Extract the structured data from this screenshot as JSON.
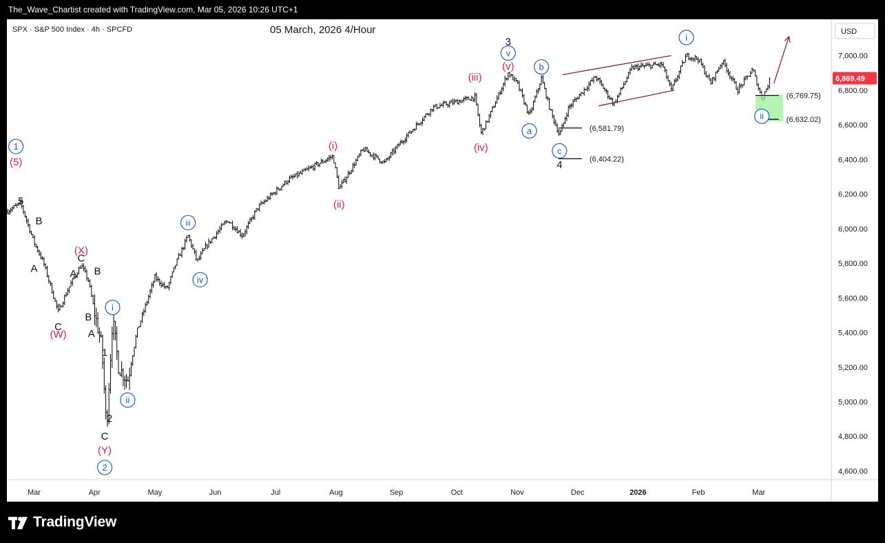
{
  "header": {
    "caption": "The_Wave_Chartist created with TradingView.com, Mar 05, 2026 10:26 UTC+1"
  },
  "footer": {
    "brand": "TradingView"
  },
  "colors": {
    "blue": "#1e5bd6",
    "red": "#e0203a",
    "black": "#111111",
    "magenta": "#8a1a55",
    "green_zone": "#9ef09a",
    "price_tag": "#f23645"
  },
  "chart_data": {
    "type": "candlestick",
    "symbol_line": "SPX · S&P 500 Index · 4h · SPCFD",
    "title": "05 March, 2026 4/Hour",
    "currency": "USD",
    "ylim": [
      4550,
      7210
    ],
    "y_ticks": [
      7000,
      6800,
      6600,
      6400,
      6200,
      6000,
      5800,
      5600,
      5400,
      5200,
      5000,
      4800,
      4600
    ],
    "y_tick_labels": [
      "7,000.00",
      "6,800.00",
      "6,600.00",
      "6,400.00",
      "6,200.00",
      "6,000.00",
      "5,800.00",
      "5,600.00",
      "5,400.00",
      "5,200.00",
      "5,000.00",
      "4,800.00",
      "4,600.00"
    ],
    "last_price": 6869.49,
    "last_price_label": "6,869.49",
    "x_labels": [
      {
        "t": 1,
        "label": "Mar"
      },
      {
        "t": 2,
        "label": "Apr"
      },
      {
        "t": 3,
        "label": "May"
      },
      {
        "t": 4,
        "label": "Jun"
      },
      {
        "t": 5,
        "label": "Jul"
      },
      {
        "t": 6,
        "label": "Aug"
      },
      {
        "t": 7,
        "label": "Sep"
      },
      {
        "t": 8,
        "label": "Oct"
      },
      {
        "t": 9,
        "label": "Nov"
      },
      {
        "t": 10,
        "label": "Dec"
      },
      {
        "t": 11,
        "label": "2026",
        "bold": true
      },
      {
        "t": 12,
        "label": "Feb"
      },
      {
        "t": 13,
        "label": "Mar"
      }
    ],
    "x_range": [
      0.55,
      14.2
    ],
    "path": [
      [
        0.55,
        6100
      ],
      [
        0.78,
        6147
      ],
      [
        1.0,
        5920
      ],
      [
        1.15,
        5810
      ],
      [
        1.4,
        5520
      ],
      [
        1.55,
        5640
      ],
      [
        1.65,
        5710
      ],
      [
        1.78,
        5790
      ],
      [
        1.9,
        5700
      ],
      [
        2.0,
        5520
      ],
      [
        2.12,
        5320
      ],
      [
        2.2,
        4840
      ],
      [
        2.3,
        5480
      ],
      [
        2.4,
        5200
      ],
      [
        2.55,
        5120
      ],
      [
        2.7,
        5400
      ],
      [
        3.0,
        5720
      ],
      [
        3.2,
        5650
      ],
      [
        3.35,
        5800
      ],
      [
        3.55,
        5960
      ],
      [
        3.7,
        5810
      ],
      [
        3.85,
        5900
      ],
      [
        4.2,
        6050
      ],
      [
        4.45,
        5960
      ],
      [
        4.7,
        6120
      ],
      [
        5.2,
        6280
      ],
      [
        5.95,
        6420
      ],
      [
        6.05,
        6230
      ],
      [
        6.45,
        6460
      ],
      [
        6.8,
        6380
      ],
      [
        7.05,
        6490
      ],
      [
        7.6,
        6700
      ],
      [
        8.3,
        6760
      ],
      [
        8.4,
        6550
      ],
      [
        8.5,
        6620
      ],
      [
        8.85,
        6900
      ],
      [
        9.0,
        6840
      ],
      [
        9.2,
        6650
      ],
      [
        9.4,
        6870
      ],
      [
        9.55,
        6680
      ],
      [
        9.7,
        6540
      ],
      [
        9.85,
        6700
      ],
      [
        10.3,
        6880
      ],
      [
        10.6,
        6720
      ],
      [
        10.9,
        6930
      ],
      [
        11.4,
        6950
      ],
      [
        11.55,
        6800
      ],
      [
        11.8,
        7000
      ],
      [
        12.0,
        6980
      ],
      [
        12.2,
        6840
      ],
      [
        12.4,
        6970
      ],
      [
        12.65,
        6800
      ],
      [
        12.9,
        6920
      ],
      [
        13.05,
        6750
      ],
      [
        13.2,
        6869
      ]
    ],
    "levels": [
      {
        "t": 9.82,
        "y": 6581.79,
        "label": "(6,581.79)"
      },
      {
        "t": 9.82,
        "y": 6404.22,
        "label": "(6,404.22)"
      },
      {
        "t": 13.08,
        "y": 6769.75,
        "label": "(6,769.75)"
      },
      {
        "t": 13.08,
        "y": 6632.02,
        "label": "(6,632.02)"
      }
    ],
    "channel": [
      {
        "t1": 9.75,
        "y1": 6890,
        "t2": 11.55,
        "y2": 7000
      },
      {
        "t1": 10.35,
        "y1": 6710,
        "t2": 11.6,
        "y2": 6800
      }
    ],
    "target_zone": {
      "t1": 12.95,
      "t2": 13.4,
      "y1": 6620,
      "y2": 6775
    },
    "projection": {
      "t1": 13.25,
      "y1": 6840,
      "t2": 13.5,
      "y2": 7110
    },
    "wave_labels": [
      {
        "t": 0.7,
        "y": 6475,
        "text": "1",
        "style": "circle",
        "color": "blue"
      },
      {
        "t": 0.7,
        "y": 6385,
        "text": "(5)",
        "color": "red"
      },
      {
        "t": 0.78,
        "y": 6160,
        "text": "5",
        "color": "black"
      },
      {
        "t": 1.08,
        "y": 6045,
        "text": "B",
        "color": "black"
      },
      {
        "t": 1.0,
        "y": 5770,
        "text": "A",
        "color": "black"
      },
      {
        "t": 1.4,
        "y": 5435,
        "text": "C",
        "color": "black"
      },
      {
        "t": 1.4,
        "y": 5390,
        "text": "(W)",
        "color": "red"
      },
      {
        "t": 1.65,
        "y": 5740,
        "text": "A",
        "color": "black"
      },
      {
        "t": 1.78,
        "y": 5875,
        "text": "(X)",
        "color": "red"
      },
      {
        "t": 1.78,
        "y": 5830,
        "text": "C",
        "color": "black"
      },
      {
        "t": 1.9,
        "y": 5490,
        "text": "B",
        "color": "black"
      },
      {
        "t": 2.05,
        "y": 5755,
        "text": "B",
        "color": "black"
      },
      {
        "t": 1.95,
        "y": 5395,
        "text": "A",
        "color": "black"
      },
      {
        "t": 2.3,
        "y": 5545,
        "text": "i",
        "style": "circle",
        "color": "blue"
      },
      {
        "t": 2.17,
        "y": 5285,
        "text": "1",
        "color": "black"
      },
      {
        "t": 2.25,
        "y": 4905,
        "text": "2",
        "color": "black"
      },
      {
        "t": 2.17,
        "y": 4800,
        "text": "C",
        "color": "black"
      },
      {
        "t": 2.17,
        "y": 4720,
        "text": "(Y)",
        "color": "red"
      },
      {
        "t": 2.17,
        "y": 4620,
        "text": "2",
        "style": "circle",
        "color": "blue"
      },
      {
        "t": 2.55,
        "y": 5010,
        "text": "ii",
        "style": "circle",
        "color": "blue"
      },
      {
        "t": 3.55,
        "y": 6035,
        "text": "iii",
        "style": "circle",
        "color": "blue"
      },
      {
        "t": 3.75,
        "y": 5705,
        "text": "iv",
        "style": "circle",
        "color": "blue"
      },
      {
        "t": 5.95,
        "y": 6480,
        "text": "(i)",
        "color": "red"
      },
      {
        "t": 6.05,
        "y": 6140,
        "text": "(ii)",
        "color": "red"
      },
      {
        "t": 8.3,
        "y": 6875,
        "text": "(iii)",
        "color": "red"
      },
      {
        "t": 8.4,
        "y": 6470,
        "text": "(iv)",
        "color": "red"
      },
      {
        "t": 8.85,
        "y": 7080,
        "text": "3",
        "color": "black"
      },
      {
        "t": 8.85,
        "y": 7015,
        "text": "v",
        "style": "circle",
        "color": "blue"
      },
      {
        "t": 8.85,
        "y": 6940,
        "text": "(v)",
        "color": "red"
      },
      {
        "t": 9.4,
        "y": 6935,
        "text": "b",
        "style": "circle",
        "color": "blue"
      },
      {
        "t": 9.2,
        "y": 6565,
        "text": "a",
        "style": "circle",
        "color": "blue"
      },
      {
        "t": 9.7,
        "y": 6450,
        "text": "c",
        "style": "circle",
        "color": "blue"
      },
      {
        "t": 9.7,
        "y": 6370,
        "text": "4",
        "color": "black"
      },
      {
        "t": 11.8,
        "y": 7105,
        "text": "i",
        "style": "circle",
        "color": "blue"
      },
      {
        "t": 13.05,
        "y": 6650,
        "text": "ii",
        "style": "circle",
        "color": "blue"
      }
    ]
  }
}
